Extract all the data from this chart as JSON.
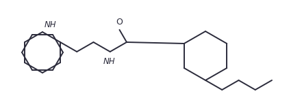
{
  "background_color": "#ffffff",
  "line_color": "#2b2b3b",
  "text_color": "#2b2b3b",
  "figsize": [
    4.22,
    1.47
  ],
  "dpi": 100,
  "NH_label": "NH",
  "O_label": "O",
  "NH_ring_label": "NH"
}
